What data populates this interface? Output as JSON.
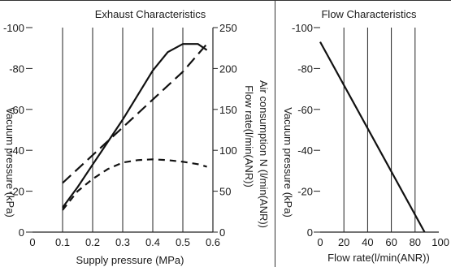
{
  "chart_data": [
    {
      "type": "line",
      "title": "Exhaust Characteristics",
      "xlabel": "Supply pressure (MPa)",
      "xlim": [
        0,
        0.6
      ],
      "x_ticks": [
        "0",
        "0.1",
        "0.2",
        "0.3",
        "0.4",
        "0.5",
        "0.6"
      ],
      "ylabel_left": "Vacuum pressure (kPa)",
      "ylim_left": [
        0,
        -100
      ],
      "y_ticks_left": [
        "0",
        "-20",
        "-40",
        "-60",
        "-80",
        "-100"
      ],
      "ylabel_right_1": "Air consumption N (l/min(ANR))",
      "ylabel_right_2": "Flow rate(l/min(ANR))",
      "ylim_right": [
        0,
        250
      ],
      "y_ticks_right": [
        "0",
        "50",
        "100",
        "150",
        "200",
        "250"
      ],
      "grid": "vertical",
      "series": [
        {
          "style": "solid",
          "axis": "left",
          "x": [
            0.1,
            0.15,
            0.2,
            0.25,
            0.3,
            0.35,
            0.4,
            0.45,
            0.5,
            0.55,
            0.58
          ],
          "y": [
            -12,
            -22,
            -33,
            -44,
            -55,
            -67,
            -79,
            -88,
            -92,
            -92,
            -89
          ]
        },
        {
          "style": "long-dash",
          "axis": "right",
          "x": [
            0.1,
            0.2,
            0.3,
            0.4,
            0.5,
            0.58
          ],
          "y": [
            60,
            94,
            128,
            162,
            196,
            230
          ]
        },
        {
          "style": "short-dash",
          "axis": "right",
          "x": [
            0.1,
            0.15,
            0.2,
            0.25,
            0.3,
            0.35,
            0.4,
            0.45,
            0.5,
            0.55,
            0.58
          ],
          "y": [
            27,
            50,
            65,
            77,
            85,
            88,
            89,
            88,
            86,
            83,
            80
          ]
        }
      ]
    },
    {
      "type": "line",
      "title": "Flow Characteristics",
      "xlabel": "Flow rate(l/min(ANR))",
      "xlim": [
        0,
        100
      ],
      "x_ticks": [
        "0",
        "20",
        "40",
        "60",
        "80",
        "100"
      ],
      "ylabel": "Vacuum pressure (kPa)",
      "ylim": [
        0,
        -100
      ],
      "y_ticks": [
        "0",
        "-20",
        "-40",
        "-60",
        "-80",
        "-100"
      ],
      "grid": "vertical",
      "series": [
        {
          "style": "solid",
          "x": [
            0,
            88
          ],
          "y": [
            -93,
            0
          ]
        }
      ]
    }
  ]
}
